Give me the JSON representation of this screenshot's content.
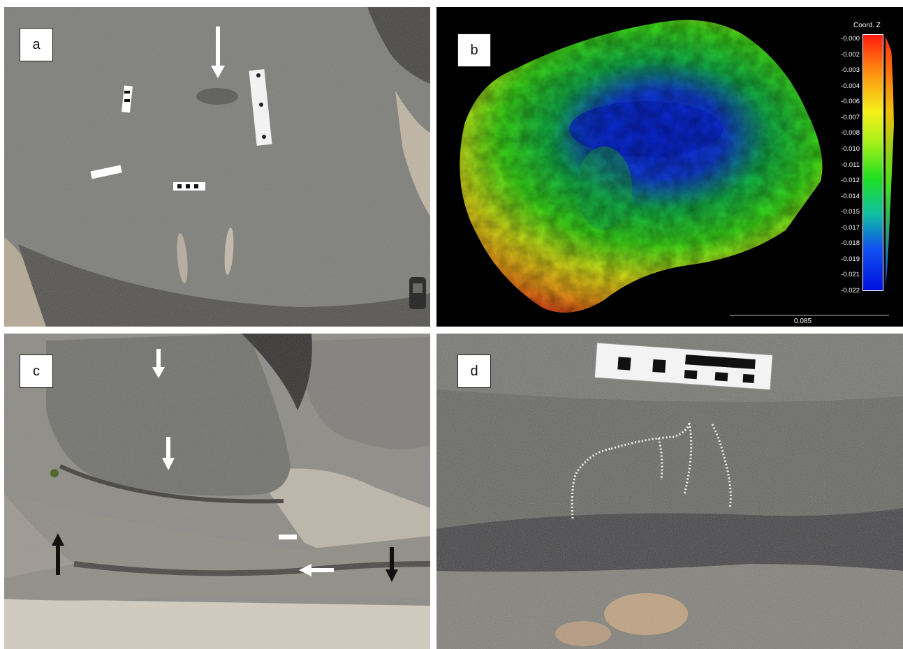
{
  "figure": {
    "panels": [
      {
        "label": "a"
      },
      {
        "label": "b"
      },
      {
        "label": "c"
      },
      {
        "label": "d"
      }
    ],
    "colorbar": {
      "title": "Coord. Z",
      "ticks": [
        "-0.000",
        "-0.002",
        "-0.003",
        "-0.004",
        "-0.006",
        "-0.007",
        "-0.008",
        "-0.010",
        "-0.011",
        "-0.012",
        "-0.014",
        "-0.015",
        "-0.017",
        "-0.018",
        "-0.019",
        "-0.021",
        "-0.022"
      ],
      "colors": [
        "#ff0000",
        "#ffff00",
        "#00ff00",
        "#0000ff"
      ]
    },
    "scale_value": "0.085"
  }
}
